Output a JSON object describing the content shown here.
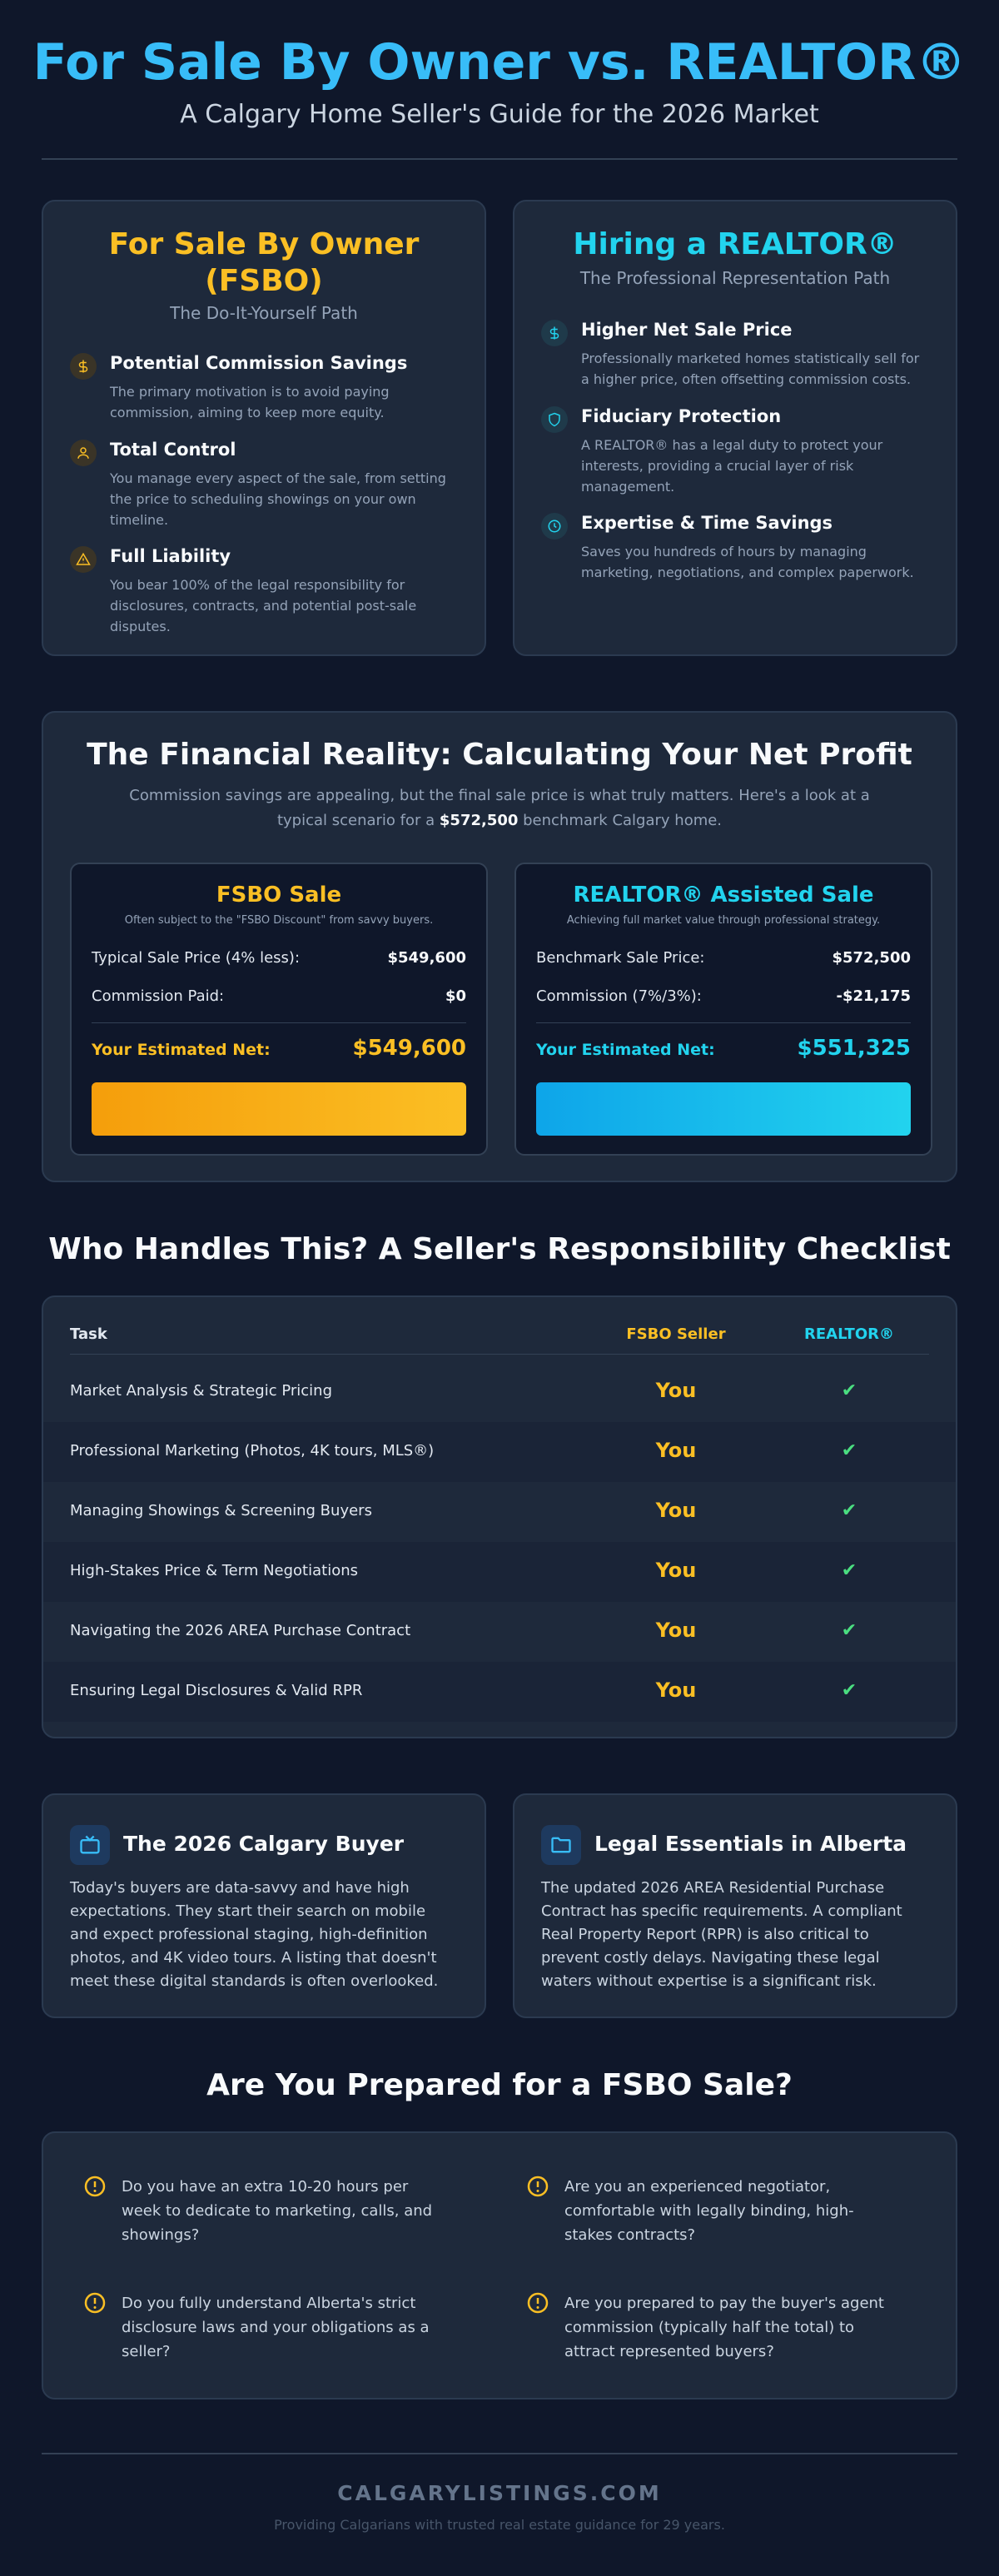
{
  "header": {
    "title": "For Sale By Owner vs. REALTOR®",
    "subtitle": "A Calgary Home Seller's Guide for the 2026 Market"
  },
  "paths": {
    "fsbo": {
      "title_line1": "For Sale By Owner",
      "title_line2": "(FSBO)",
      "subtitle": "The Do-It-Yourself Path",
      "accent": "#fbbf24",
      "features": [
        {
          "icon": "dollar-icon",
          "title": "Potential Commission Savings",
          "text": "The primary motivation is to avoid paying commission, aiming to keep more equity."
        },
        {
          "icon": "user-icon",
          "title": "Total Control",
          "text": "You manage every aspect of the sale, from setting the price to scheduling showings on your own timeline."
        },
        {
          "icon": "warning-icon",
          "title": "Full Liability",
          "text": "You bear 100% of the legal responsibility for disclosures, contracts, and potential post-sale disputes."
        }
      ]
    },
    "realtor": {
      "title": "Hiring a REALTOR®",
      "subtitle": "The Professional Representation Path",
      "accent": "#22d3ee",
      "features": [
        {
          "icon": "dollar-icon",
          "title": "Higher Net Sale Price",
          "text": "Professionally marketed homes statistically sell for a higher price, often offsetting commission costs."
        },
        {
          "icon": "shield-icon",
          "title": "Fiduciary Protection",
          "text": "A REALTOR® has a legal duty to protect your interests, providing a crucial layer of risk management."
        },
        {
          "icon": "clock-icon",
          "title": "Expertise & Time Savings",
          "text": "Saves you hundreds of hours by managing marketing, negotiations, and complex paperwork."
        }
      ]
    }
  },
  "financial": {
    "title": "The Financial Reality: Calculating Your Net Profit",
    "desc_part1": "Commission savings are appealing, but the final sale price is what truly matters. Here's a look at a typical scenario for a ",
    "desc_bold": "$572,500",
    "desc_part2": " benchmark Calgary home.",
    "fsbo": {
      "title": "FSBO Sale",
      "note": "Often subject to the \"FSBO Discount\" from savvy buyers.",
      "row1_label": "Typical Sale Price (4% less):",
      "row1_value": "$549,600",
      "row2_label": "Commission Paid:",
      "row2_value": "$0",
      "net_label": "Your Estimated Net:",
      "net_value": "$549,600",
      "net_amount": 549600
    },
    "realtor": {
      "title": "REALTOR® Assisted Sale",
      "note": "Achieving full market value through professional strategy.",
      "row1_label": "Benchmark Sale Price:",
      "row1_value": "$572,500",
      "row2_label": "Commission (7%/3%):",
      "row2_value": "-$21,175",
      "net_label": "Your Estimated Net:",
      "net_value": "$551,325",
      "net_amount": 551325
    }
  },
  "checklist": {
    "title": "Who Handles This? A Seller's Responsibility Checklist",
    "col_task": "Task",
    "col_fsbo": "FSBO Seller",
    "col_realtor": "REALTOR®",
    "fsbo_mark": "You",
    "realtor_mark": "✔",
    "rows": [
      "Market Analysis & Strategic Pricing",
      "Professional Marketing (Photos, 4K tours, MLS®)",
      "Managing Showings & Screening Buyers",
      "High-Stakes Price & Term Negotiations",
      "Navigating the 2026 AREA Purchase Contract",
      "Ensuring Legal Disclosures & Valid RPR"
    ]
  },
  "info": {
    "buyer": {
      "icon": "tv-icon",
      "title": "The 2026 Calgary Buyer",
      "text": "Today's buyers are data-savvy and have high expectations. They start their search on mobile and expect professional staging, high-definition photos, and 4K video tours. A listing that doesn't meet these digital standards is often overlooked."
    },
    "legal": {
      "icon": "folder-icon",
      "title": "Legal Essentials in Alberta",
      "text": "The updated 2026 AREA Residential Purchase Contract has specific requirements. A compliant Real Property Report (RPR) is also critical to prevent costly delays. Navigating these legal waters without expertise is a significant risk."
    }
  },
  "prepared": {
    "title": "Are You Prepared for a FSBO Sale?",
    "questions": [
      "Do you have an extra 10-20 hours per week to dedicate to marketing, calls, and showings?",
      "Are you an experienced negotiator, comfortable with legally binding, high-stakes contracts?",
      "Do you fully understand Alberta's strict disclosure laws and your obligations as a seller?",
      "Are you prepared to pay the buyer's agent commission (typically half the total) to attract represented buyers?"
    ]
  },
  "footer": {
    "brand": "CALGARYLISTINGS.COM",
    "note": "Providing Calgarians with trusted real estate guidance for 29 years."
  }
}
